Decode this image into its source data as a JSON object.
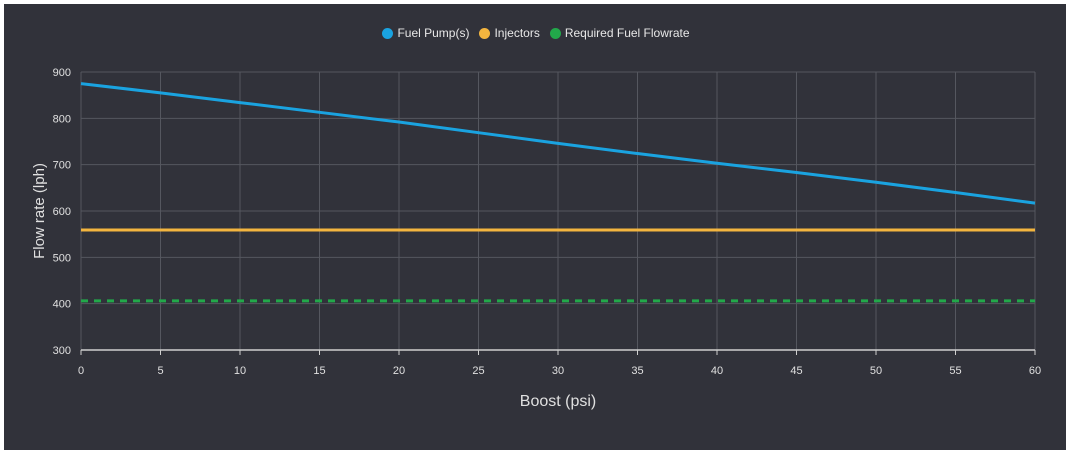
{
  "chart_data": {
    "type": "line",
    "xlabel": "Boost (psi)",
    "ylabel": "Flow rate (lph)",
    "xlim": [
      0,
      60
    ],
    "ylim": [
      300,
      900
    ],
    "xticks": [
      0,
      5,
      10,
      15,
      20,
      25,
      30,
      35,
      40,
      45,
      50,
      55,
      60
    ],
    "yticks": [
      300,
      400,
      500,
      600,
      700,
      800,
      900
    ],
    "grid": true,
    "legend_position": "top",
    "x": [
      0,
      5,
      10,
      15,
      20,
      25,
      30,
      35,
      40,
      45,
      50,
      55,
      60
    ],
    "series": [
      {
        "name": "Fuel Pump(s)",
        "color": "#1aa3e0",
        "dash": false,
        "values": [
          875,
          855,
          834,
          813,
          792,
          769,
          746,
          724,
          703,
          683,
          662,
          640,
          617
        ]
      },
      {
        "name": "Injectors",
        "color": "#f3b53f",
        "dash": false,
        "values": [
          559,
          559,
          559,
          559,
          559,
          559,
          559,
          559,
          559,
          559,
          559,
          559,
          559
        ]
      },
      {
        "name": "Required Fuel Flowrate",
        "color": "#22a84a",
        "dash": true,
        "values": [
          406,
          406,
          406,
          406,
          406,
          406,
          406,
          406,
          406,
          406,
          406,
          406,
          406
        ]
      }
    ]
  }
}
